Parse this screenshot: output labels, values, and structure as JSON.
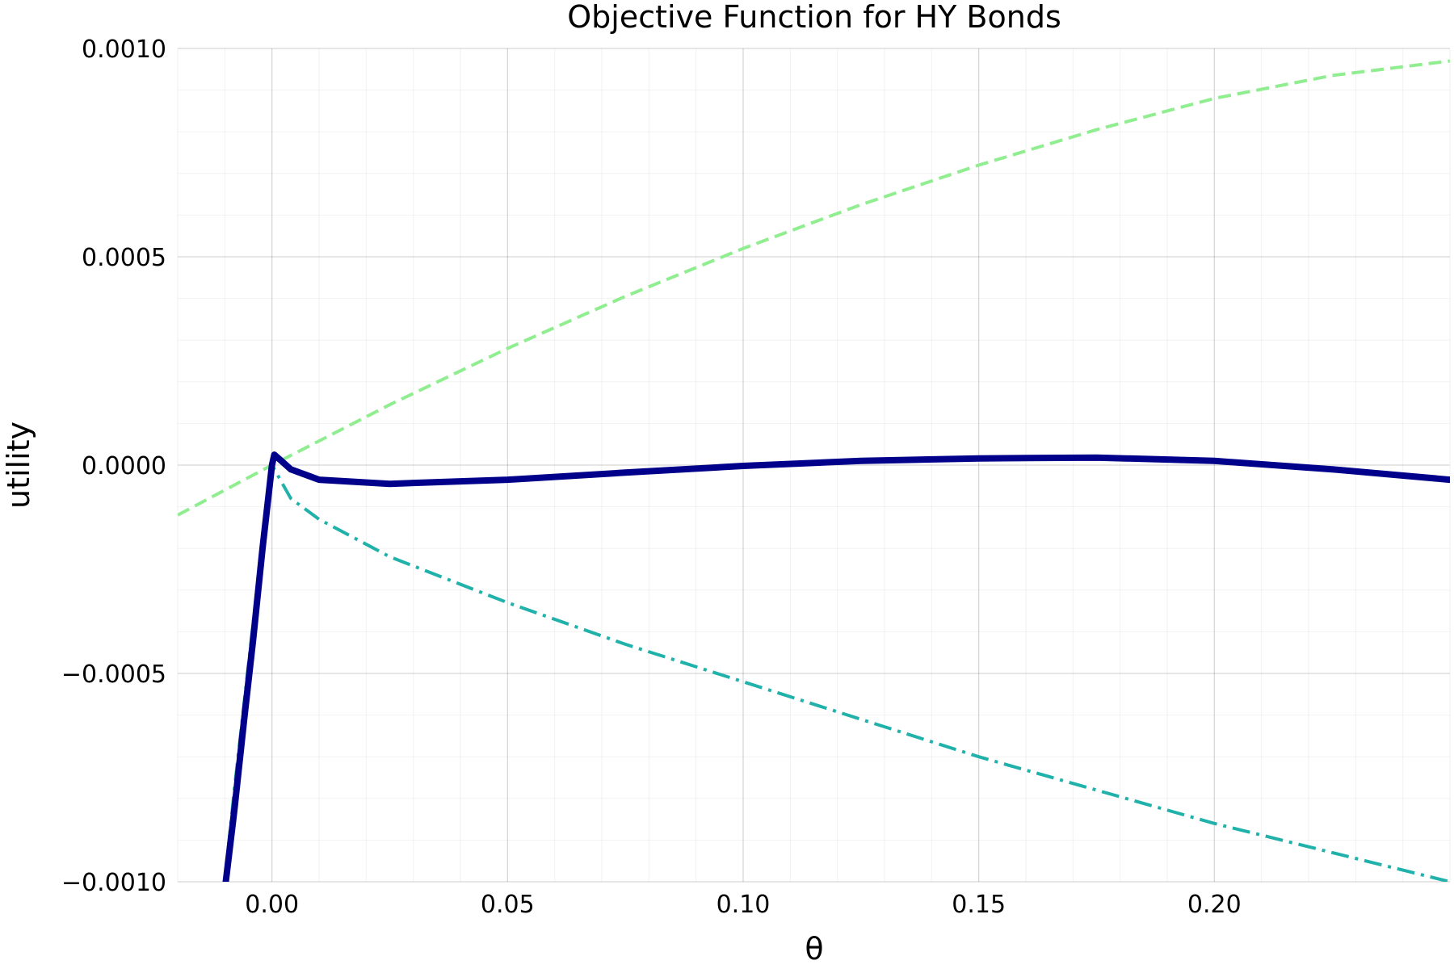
{
  "chart_data": {
    "type": "line",
    "title": "Objective Function for HY Bonds",
    "xlabel": "θ",
    "ylabel": "utility",
    "xlim": [
      -0.02,
      0.25
    ],
    "ylim": [
      -0.001,
      0.001
    ],
    "grid": true,
    "legend": "none",
    "x_ticks": [
      0.0,
      0.05,
      0.1,
      0.15,
      0.2
    ],
    "x_tick_labels": [
      "0.00",
      "0.05",
      "0.10",
      "0.15",
      "0.20"
    ],
    "y_ticks": [
      -0.001,
      -0.0005,
      0.0,
      0.0005,
      0.001
    ],
    "y_tick_labels": [
      "−0.0010",
      "−0.0005",
      "0.0000",
      "0.0005",
      "0.0010"
    ],
    "series": [
      {
        "style": "dashed",
        "color": "#90EE90",
        "x": [
          -0.02,
          0.0,
          0.025,
          0.05,
          0.075,
          0.1,
          0.125,
          0.15,
          0.175,
          0.2,
          0.225,
          0.25
        ],
        "y": [
          -0.00012,
          0.0,
          0.000145,
          0.00028,
          0.000405,
          0.00052,
          0.000625,
          0.00072,
          0.000805,
          0.00088,
          0.000935,
          0.00097
        ]
      },
      {
        "style": "dashdot",
        "color": "#20B2AA",
        "x": [
          -0.01,
          -0.008,
          -0.006,
          -0.004,
          -0.002,
          0.0,
          0.002,
          0.004,
          0.01,
          0.025,
          0.05,
          0.075,
          0.1,
          0.125,
          0.15,
          0.175,
          0.2,
          0.225,
          0.25
        ],
        "y": [
          -0.001,
          -0.00078,
          -0.00058,
          -0.00038,
          -0.00018,
          0.0,
          -4e-05,
          -8e-05,
          -0.00013,
          -0.00022,
          -0.00033,
          -0.00043,
          -0.00052,
          -0.00061,
          -0.0007,
          -0.00078,
          -0.00086,
          -0.00093,
          -0.001
        ]
      },
      {
        "style": "solid",
        "color": "#00008B",
        "x": [
          -0.0098,
          -0.008,
          -0.006,
          -0.004,
          -0.002,
          0.0,
          0.0005,
          0.002,
          0.004,
          0.01,
          0.025,
          0.05,
          0.075,
          0.1,
          0.125,
          0.15,
          0.175,
          0.2,
          0.225,
          0.25
        ],
        "y": [
          -0.001,
          -0.00083,
          -0.00062,
          -0.00042,
          -0.0002,
          0.0,
          2.5e-05,
          1e-05,
          -1e-05,
          -3.5e-05,
          -4.5e-05,
          -3.5e-05,
          -1.8e-05,
          -2e-06,
          1e-05,
          1.6e-05,
          1.8e-05,
          1e-05,
          -1e-05,
          -3.5e-05
        ]
      }
    ]
  }
}
